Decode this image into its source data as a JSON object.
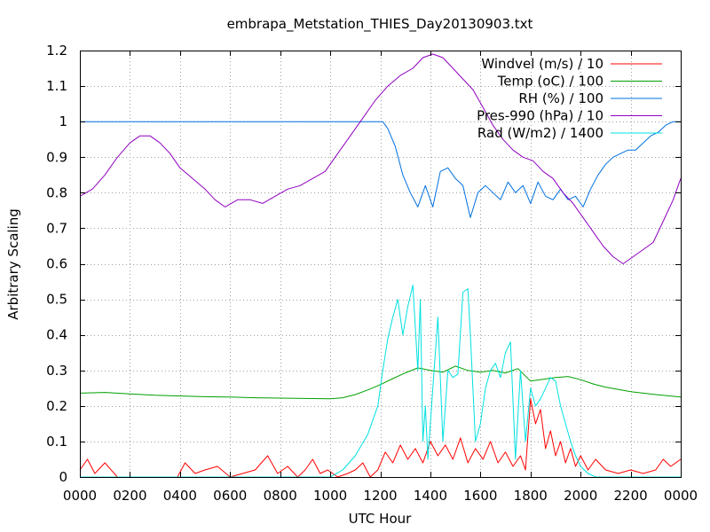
{
  "chart_data": {
    "type": "line",
    "title": "embrapa_Metstation_THIES_Day20130903.txt",
    "xlabel": "UTC Hour",
    "ylabel": "Arbitrary Scaling",
    "xlim": [
      0,
      24
    ],
    "ylim": [
      0,
      1.2
    ],
    "grid": true,
    "legend_position": "top-right",
    "x_ticks": [
      {
        "value": 0,
        "label": "0000"
      },
      {
        "value": 2,
        "label": "0200"
      },
      {
        "value": 4,
        "label": "0400"
      },
      {
        "value": 6,
        "label": "0600"
      },
      {
        "value": 8,
        "label": "0800"
      },
      {
        "value": 10,
        "label": "1000"
      },
      {
        "value": 12,
        "label": "1200"
      },
      {
        "value": 14,
        "label": "1400"
      },
      {
        "value": 16,
        "label": "1600"
      },
      {
        "value": 18,
        "label": "1800"
      },
      {
        "value": 20,
        "label": "2000"
      },
      {
        "value": 22,
        "label": "2200"
      },
      {
        "value": 24,
        "label": "0000"
      }
    ],
    "y_ticks": [
      {
        "value": 0,
        "label": "0"
      },
      {
        "value": 0.1,
        "label": "0.1"
      },
      {
        "value": 0.2,
        "label": "0.2"
      },
      {
        "value": 0.3,
        "label": "0.3"
      },
      {
        "value": 0.4,
        "label": "0.4"
      },
      {
        "value": 0.5,
        "label": "0.5"
      },
      {
        "value": 0.6,
        "label": "0.6"
      },
      {
        "value": 0.7,
        "label": "0.7"
      },
      {
        "value": 0.8,
        "label": "0.8"
      },
      {
        "value": 0.9,
        "label": "0.9"
      },
      {
        "value": 1.0,
        "label": "1"
      },
      {
        "value": 1.1,
        "label": "1.1"
      },
      {
        "value": 1.2,
        "label": "1.2"
      }
    ],
    "series": [
      {
        "name": "Windvel (m/s) / 10",
        "color": "#ff0000",
        "x": [
          0,
          0.3,
          0.6,
          1,
          1.5,
          2,
          2.5,
          3,
          3.5,
          3.9,
          4.2,
          4.6,
          5,
          5.5,
          6,
          6.5,
          7,
          7.5,
          7.9,
          8.3,
          8.7,
          9,
          9.3,
          9.6,
          9.9,
          10.3,
          10.7,
          11,
          11.3,
          11.6,
          11.9,
          12.2,
          12.5,
          12.8,
          13.1,
          13.4,
          13.7,
          14,
          14.3,
          14.6,
          14.9,
          15.2,
          15.5,
          15.8,
          16.1,
          16.4,
          16.7,
          17,
          17.3,
          17.6,
          17.8,
          18,
          18.2,
          18.4,
          18.6,
          18.8,
          19,
          19.2,
          19.4,
          19.6,
          19.8,
          20,
          20.3,
          20.6,
          21,
          21.5,
          22,
          22.5,
          23,
          23.3,
          23.6,
          24
        ],
        "values": [
          0.02,
          0.05,
          0.01,
          0.04,
          0.0,
          0.0,
          0.0,
          0.0,
          0.0,
          0.0,
          0.04,
          0.01,
          0.02,
          0.03,
          0.0,
          0.01,
          0.02,
          0.06,
          0.01,
          0.03,
          0.0,
          0.02,
          0.05,
          0.01,
          0.02,
          0.0,
          0.01,
          0.02,
          0.04,
          0.0,
          0.02,
          0.07,
          0.04,
          0.09,
          0.05,
          0.08,
          0.04,
          0.1,
          0.06,
          0.09,
          0.05,
          0.11,
          0.04,
          0.08,
          0.05,
          0.1,
          0.04,
          0.07,
          0.03,
          0.06,
          0.02,
          0.22,
          0.15,
          0.19,
          0.08,
          0.13,
          0.06,
          0.1,
          0.04,
          0.08,
          0.03,
          0.06,
          0.02,
          0.05,
          0.02,
          0.01,
          0.02,
          0.01,
          0.02,
          0.05,
          0.03,
          0.05
        ]
      },
      {
        "name": "Temp (oC) / 100",
        "color": "#00a000",
        "x": [
          0,
          1,
          2,
          3,
          4,
          5,
          6,
          7,
          8,
          9,
          10,
          10.5,
          11,
          11.5,
          12,
          12.5,
          13,
          13.5,
          14,
          14.5,
          15,
          15.5,
          16,
          16.5,
          17,
          17.5,
          18,
          18.5,
          19,
          19.5,
          20,
          20.5,
          21,
          22,
          23,
          24
        ],
        "values": [
          0.236,
          0.238,
          0.234,
          0.23,
          0.228,
          0.226,
          0.225,
          0.223,
          0.222,
          0.221,
          0.22,
          0.223,
          0.232,
          0.245,
          0.26,
          0.277,
          0.293,
          0.307,
          0.3,
          0.295,
          0.312,
          0.3,
          0.295,
          0.3,
          0.293,
          0.305,
          0.27,
          0.275,
          0.28,
          0.283,
          0.274,
          0.262,
          0.253,
          0.24,
          0.232,
          0.225
        ]
      },
      {
        "name": "RH (%) / 100",
        "color": "#0070e0",
        "x": [
          0,
          1,
          2,
          3,
          4,
          5,
          6,
          7,
          8,
          9,
          10,
          11,
          11.8,
          12.1,
          12.3,
          12.6,
          12.9,
          13.2,
          13.5,
          13.8,
          14.1,
          14.4,
          14.7,
          15,
          15.3,
          15.6,
          15.9,
          16.2,
          16.5,
          16.8,
          17.1,
          17.4,
          17.7,
          18,
          18.3,
          18.6,
          18.9,
          19.2,
          19.5,
          19.8,
          20.1,
          20.4,
          20.7,
          21,
          21.3,
          21.6,
          21.9,
          22.2,
          22.5,
          22.8,
          23.1,
          23.4,
          23.7,
          24
        ],
        "values": [
          1.0,
          1.0,
          1.0,
          1.0,
          1.0,
          1.0,
          1.0,
          1.0,
          1.0,
          1.0,
          1.0,
          1.0,
          1.0,
          1.0,
          0.98,
          0.93,
          0.85,
          0.8,
          0.76,
          0.82,
          0.76,
          0.86,
          0.87,
          0.84,
          0.82,
          0.73,
          0.8,
          0.82,
          0.8,
          0.78,
          0.83,
          0.8,
          0.82,
          0.77,
          0.83,
          0.79,
          0.78,
          0.81,
          0.78,
          0.79,
          0.76,
          0.81,
          0.85,
          0.88,
          0.9,
          0.91,
          0.92,
          0.92,
          0.94,
          0.96,
          0.97,
          0.99,
          1.0,
          1.0
        ]
      },
      {
        "name": "Pres-990 (hPa) / 10",
        "color": "#9000c0",
        "x": [
          0,
          0.5,
          1,
          1.5,
          2,
          2.4,
          2.8,
          3.2,
          3.6,
          4,
          4.5,
          5,
          5.4,
          5.8,
          6.3,
          6.8,
          7.3,
          7.8,
          8.3,
          8.8,
          9.3,
          9.8,
          10.3,
          10.8,
          11.3,
          11.8,
          12.3,
          12.8,
          13.3,
          13.7,
          14.1,
          14.5,
          14.9,
          15.3,
          15.7,
          16.1,
          16.5,
          16.9,
          17.3,
          17.7,
          18.1,
          18.5,
          18.9,
          19.3,
          19.7,
          20.1,
          20.5,
          20.9,
          21.3,
          21.7,
          22.1,
          22.5,
          22.9,
          23.3,
          23.7,
          24
        ],
        "values": [
          0.79,
          0.81,
          0.85,
          0.9,
          0.94,
          0.96,
          0.96,
          0.94,
          0.91,
          0.87,
          0.84,
          0.81,
          0.78,
          0.76,
          0.78,
          0.78,
          0.77,
          0.79,
          0.81,
          0.82,
          0.84,
          0.86,
          0.91,
          0.96,
          1.01,
          1.06,
          1.1,
          1.13,
          1.15,
          1.18,
          1.19,
          1.18,
          1.15,
          1.12,
          1.09,
          1.04,
          0.99,
          0.95,
          0.92,
          0.9,
          0.89,
          0.86,
          0.84,
          0.8,
          0.77,
          0.73,
          0.69,
          0.65,
          0.62,
          0.6,
          0.62,
          0.64,
          0.66,
          0.72,
          0.78,
          0.84
        ]
      },
      {
        "name": "Rad (W/m2) / 1400",
        "color": "#00e0e0",
        "x": [
          0,
          2,
          4,
          6,
          8,
          10,
          10.5,
          11,
          11.5,
          11.9,
          12.1,
          12.3,
          12.5,
          12.7,
          12.9,
          13.1,
          13.3,
          13.5,
          13.6,
          13.7,
          13.8,
          13.9,
          14.1,
          14.3,
          14.5,
          14.7,
          14.9,
          15.1,
          15.3,
          15.5,
          15.6,
          15.8,
          16,
          16.2,
          16.4,
          16.6,
          16.8,
          17,
          17.2,
          17.4,
          17.6,
          17.8,
          18,
          18.2,
          18.4,
          18.6,
          18.8,
          19,
          19.2,
          19.4,
          19.6,
          19.8,
          20,
          20.3,
          20.6,
          21,
          22,
          23,
          24
        ],
        "values": [
          0.0,
          0.0,
          0.0,
          0.0,
          0.0,
          0.0,
          0.02,
          0.06,
          0.12,
          0.2,
          0.3,
          0.39,
          0.45,
          0.5,
          0.4,
          0.48,
          0.54,
          0.3,
          0.5,
          0.1,
          0.2,
          0.05,
          0.25,
          0.45,
          0.1,
          0.3,
          0.28,
          0.29,
          0.52,
          0.53,
          0.4,
          0.1,
          0.15,
          0.25,
          0.3,
          0.32,
          0.28,
          0.35,
          0.38,
          0.05,
          0.3,
          0.1,
          0.25,
          0.2,
          0.22,
          0.25,
          0.28,
          0.27,
          0.2,
          0.15,
          0.1,
          0.06,
          0.03,
          0.01,
          0.0,
          0.0,
          0.0,
          0.0,
          0.0
        ]
      }
    ]
  }
}
